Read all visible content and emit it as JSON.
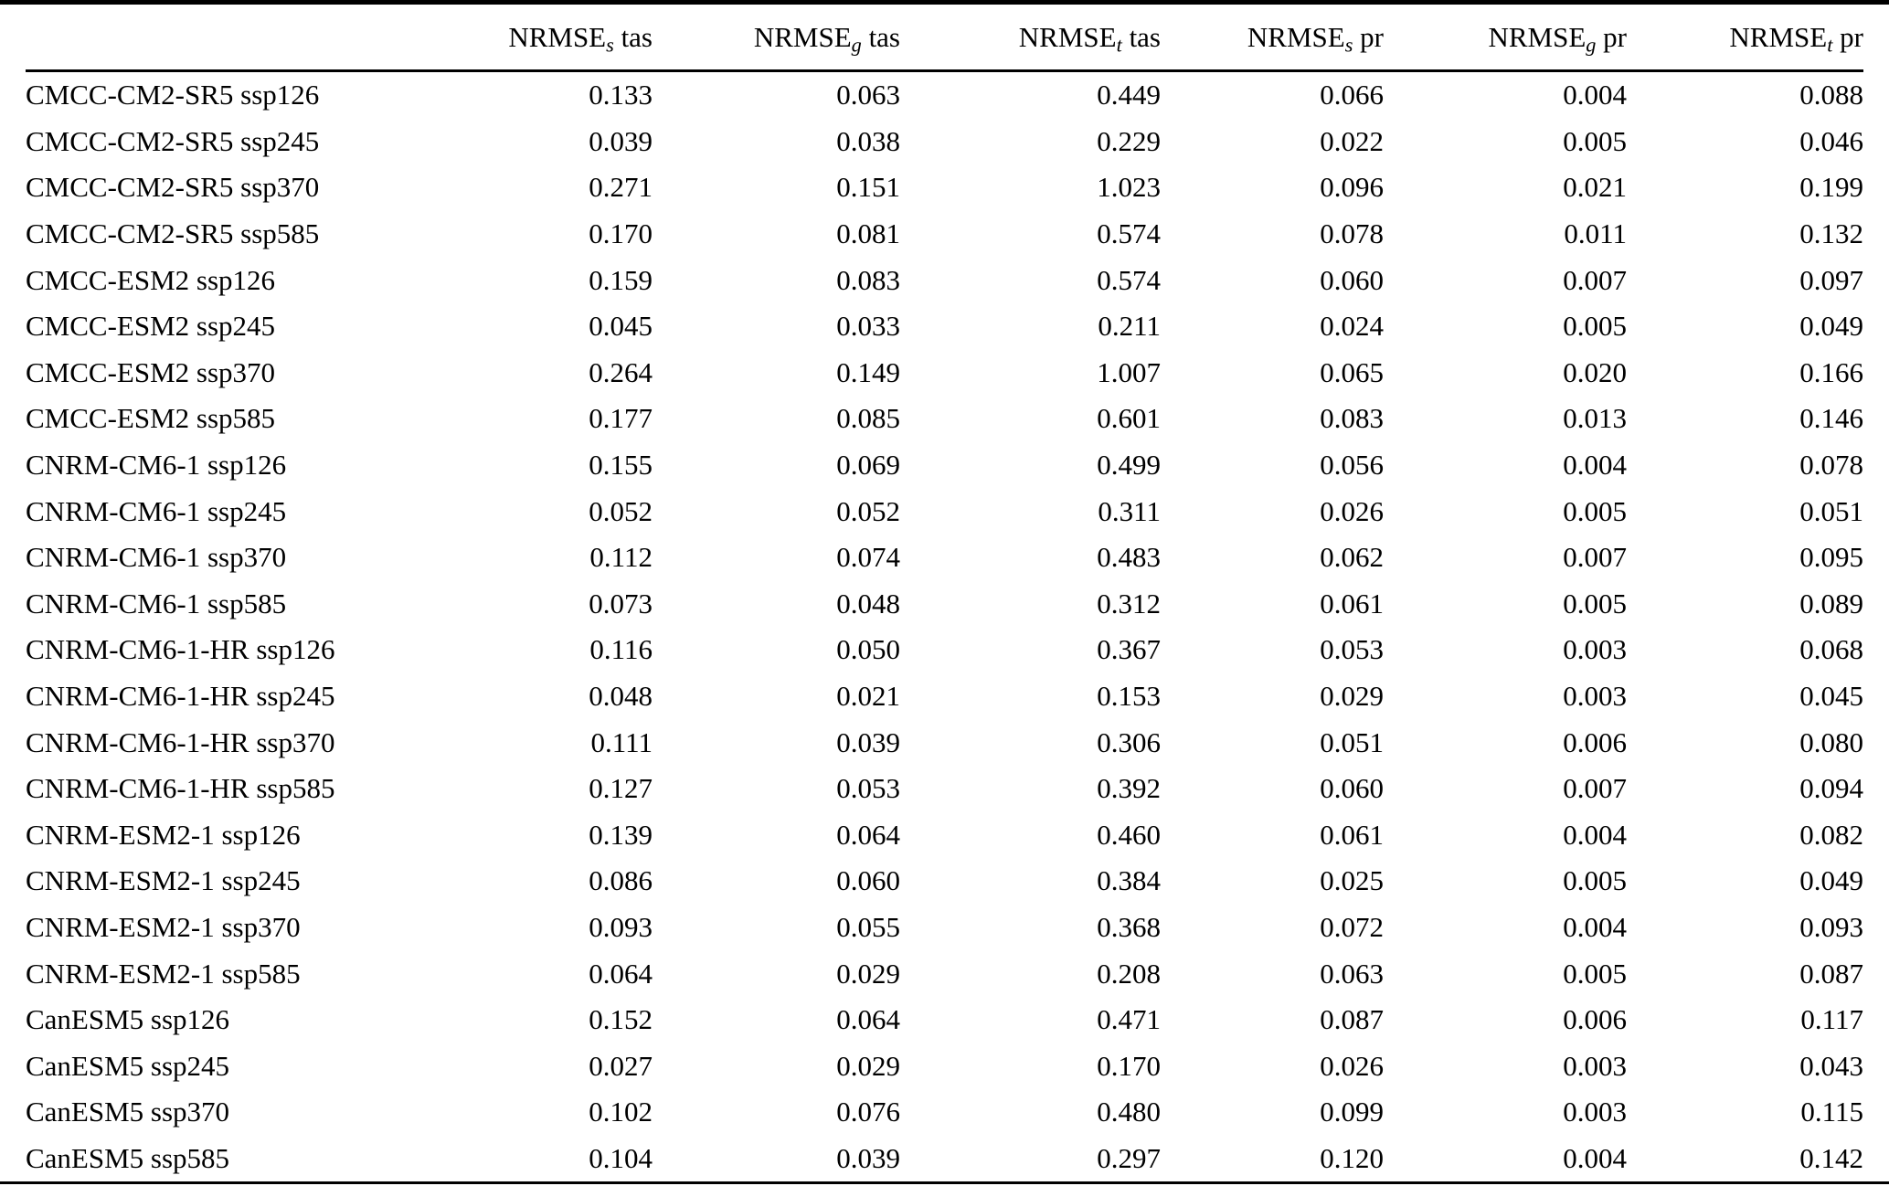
{
  "table": {
    "columns": [
      {
        "prefix": "NRMSE",
        "sub": "s",
        "suffix": "tas"
      },
      {
        "prefix": "NRMSE",
        "sub": "g",
        "suffix": "tas"
      },
      {
        "prefix": "NRMSE",
        "sub": "t",
        "suffix": "tas"
      },
      {
        "prefix": "NRMSE",
        "sub": "s",
        "suffix": "pr"
      },
      {
        "prefix": "NRMSE",
        "sub": "g",
        "suffix": "pr"
      },
      {
        "prefix": "NRMSE",
        "sub": "t",
        "suffix": "pr"
      }
    ],
    "rows": [
      {
        "label": "CMCC-CM2-SR5 ssp126",
        "values": [
          "0.133",
          "0.063",
          "0.449",
          "0.066",
          "0.004",
          "0.088"
        ]
      },
      {
        "label": "CMCC-CM2-SR5 ssp245",
        "values": [
          "0.039",
          "0.038",
          "0.229",
          "0.022",
          "0.005",
          "0.046"
        ]
      },
      {
        "label": "CMCC-CM2-SR5 ssp370",
        "values": [
          "0.271",
          "0.151",
          "1.023",
          "0.096",
          "0.021",
          "0.199"
        ]
      },
      {
        "label": "CMCC-CM2-SR5 ssp585",
        "values": [
          "0.170",
          "0.081",
          "0.574",
          "0.078",
          "0.011",
          "0.132"
        ]
      },
      {
        "label": "CMCC-ESM2 ssp126",
        "values": [
          "0.159",
          "0.083",
          "0.574",
          "0.060",
          "0.007",
          "0.097"
        ]
      },
      {
        "label": "CMCC-ESM2 ssp245",
        "values": [
          "0.045",
          "0.033",
          "0.211",
          "0.024",
          "0.005",
          "0.049"
        ]
      },
      {
        "label": "CMCC-ESM2 ssp370",
        "values": [
          "0.264",
          "0.149",
          "1.007",
          "0.065",
          "0.020",
          "0.166"
        ]
      },
      {
        "label": "CMCC-ESM2 ssp585",
        "values": [
          "0.177",
          "0.085",
          "0.601",
          "0.083",
          "0.013",
          "0.146"
        ]
      },
      {
        "label": "CNRM-CM6-1 ssp126",
        "values": [
          "0.155",
          "0.069",
          "0.499",
          "0.056",
          "0.004",
          "0.078"
        ]
      },
      {
        "label": "CNRM-CM6-1 ssp245",
        "values": [
          "0.052",
          "0.052",
          "0.311",
          "0.026",
          "0.005",
          "0.051"
        ]
      },
      {
        "label": "CNRM-CM6-1 ssp370",
        "values": [
          "0.112",
          "0.074",
          "0.483",
          "0.062",
          "0.007",
          "0.095"
        ]
      },
      {
        "label": "CNRM-CM6-1 ssp585",
        "values": [
          "0.073",
          "0.048",
          "0.312",
          "0.061",
          "0.005",
          "0.089"
        ]
      },
      {
        "label": "CNRM-CM6-1-HR ssp126",
        "values": [
          "0.116",
          "0.050",
          "0.367",
          "0.053",
          "0.003",
          "0.068"
        ]
      },
      {
        "label": "CNRM-CM6-1-HR ssp245",
        "values": [
          "0.048",
          "0.021",
          "0.153",
          "0.029",
          "0.003",
          "0.045"
        ]
      },
      {
        "label": "CNRM-CM6-1-HR ssp370",
        "values": [
          "0.111",
          "0.039",
          "0.306",
          "0.051",
          "0.006",
          "0.080"
        ]
      },
      {
        "label": "CNRM-CM6-1-HR ssp585",
        "values": [
          "0.127",
          "0.053",
          "0.392",
          "0.060",
          "0.007",
          "0.094"
        ]
      },
      {
        "label": "CNRM-ESM2-1 ssp126",
        "values": [
          "0.139",
          "0.064",
          "0.460",
          "0.061",
          "0.004",
          "0.082"
        ]
      },
      {
        "label": "CNRM-ESM2-1 ssp245",
        "values": [
          "0.086",
          "0.060",
          "0.384",
          "0.025",
          "0.005",
          "0.049"
        ]
      },
      {
        "label": "CNRM-ESM2-1 ssp370",
        "values": [
          "0.093",
          "0.055",
          "0.368",
          "0.072",
          "0.004",
          "0.093"
        ]
      },
      {
        "label": "CNRM-ESM2-1 ssp585",
        "values": [
          "0.064",
          "0.029",
          "0.208",
          "0.063",
          "0.005",
          "0.087"
        ]
      },
      {
        "label": "CanESM5 ssp126",
        "values": [
          "0.152",
          "0.064",
          "0.471",
          "0.087",
          "0.006",
          "0.117"
        ]
      },
      {
        "label": "CanESM5 ssp245",
        "values": [
          "0.027",
          "0.029",
          "0.170",
          "0.026",
          "0.003",
          "0.043"
        ]
      },
      {
        "label": "CanESM5 ssp370",
        "values": [
          "0.102",
          "0.076",
          "0.480",
          "0.099",
          "0.003",
          "0.115"
        ]
      },
      {
        "label": "CanESM5 ssp585",
        "values": [
          "0.104",
          "0.039",
          "0.297",
          "0.120",
          "0.004",
          "0.142"
        ]
      }
    ]
  },
  "colors": {
    "text": "#000000",
    "background": "#ffffff",
    "rule": "#000000"
  }
}
